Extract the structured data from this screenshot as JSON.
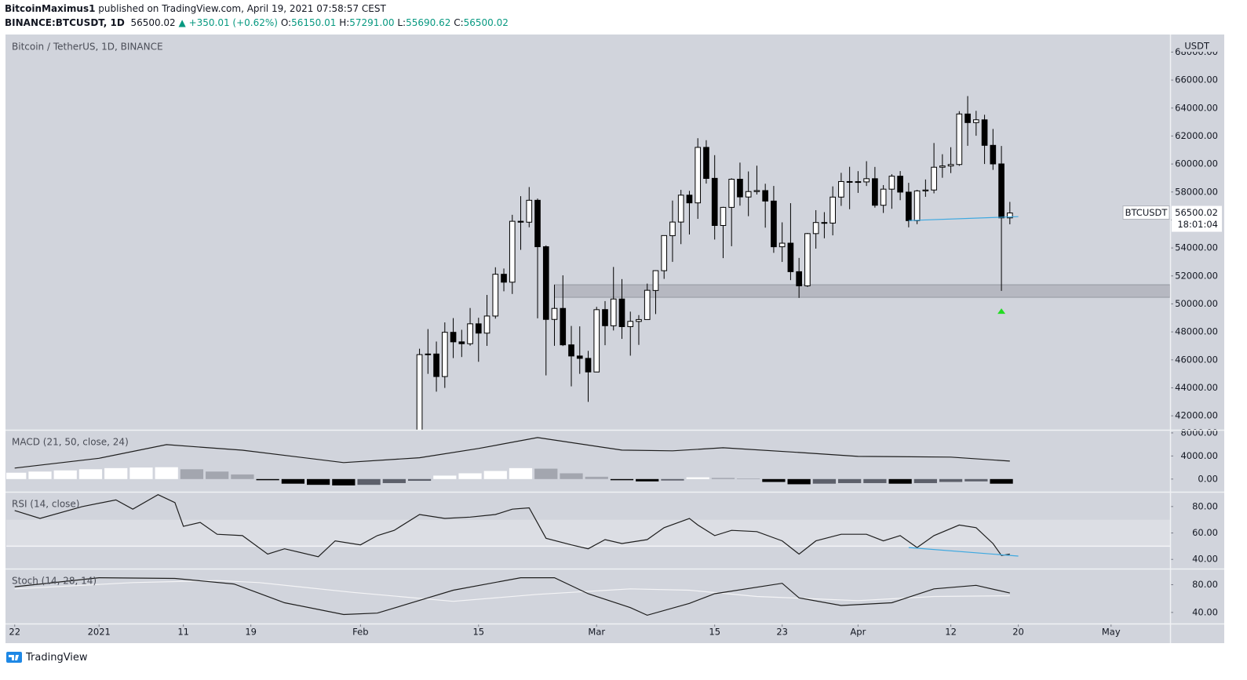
{
  "header": {
    "author": "BitcoinMaximus1",
    "published": "published on TradingView.com, April 19, 2021 07:58:57 CEST",
    "symbol": "BINANCE:BTCUSDT, 1D",
    "price": "56500.02",
    "change": "▲ +350.01 (+0.62%)",
    "ohlc": [
      {
        "label": "O:",
        "value": "56150.01"
      },
      {
        "label": "H:",
        "value": "57291.00"
      },
      {
        "label": "L:",
        "value": "55690.62"
      },
      {
        "label": "C:",
        "value": "56500.02"
      }
    ]
  },
  "footer": "TradingView",
  "chart_data": [
    {
      "type": "candlestick",
      "title": "Bitcoin / TetherUS, 1D, BINANCE",
      "y_label": "USDT",
      "last_label": "BTCUSDT",
      "countdown": "18:01:04",
      "up_color": "#ffffff",
      "down_color": "#000000",
      "xlim": [
        "2020-12-21",
        "2021-05-08"
      ],
      "ylim": [
        41000,
        69200
      ],
      "yticks": [
        {
          "value": 42000,
          "label": "42000.00"
        },
        {
          "value": 44000,
          "label": "44000.00"
        },
        {
          "value": 46000,
          "label": "46000.00"
        },
        {
          "value": 48000,
          "label": "48000.00"
        },
        {
          "value": 50000,
          "label": "50000.00"
        },
        {
          "value": 52000,
          "label": "52000.00"
        },
        {
          "value": 54000,
          "label": "54000.00"
        },
        {
          "value": 56000,
          "label": "56000.00"
        },
        {
          "value": 58000,
          "label": "58000.00"
        },
        {
          "value": 60000,
          "label": "60000.00"
        },
        {
          "value": 62000,
          "label": "62000.00"
        },
        {
          "value": 64000,
          "label": "64000.00"
        },
        {
          "value": 66000,
          "label": "66000.00"
        },
        {
          "value": 68000,
          "label": "68000.00"
        }
      ],
      "grid": false,
      "x": [
        "2021-02-08",
        "2021-02-09",
        "2021-02-10",
        "2021-02-11",
        "2021-02-12",
        "2021-02-13",
        "2021-02-14",
        "2021-02-15",
        "2021-02-16",
        "2021-02-17",
        "2021-02-18",
        "2021-02-19",
        "2021-02-20",
        "2021-02-21",
        "2021-02-22",
        "2021-02-23",
        "2021-02-24",
        "2021-02-25",
        "2021-02-26",
        "2021-02-27",
        "2021-02-28",
        "2021-03-01",
        "2021-03-02",
        "2021-03-03",
        "2021-03-04",
        "2021-03-05",
        "2021-03-06",
        "2021-03-07",
        "2021-03-08",
        "2021-03-09",
        "2021-03-10",
        "2021-03-11",
        "2021-03-12",
        "2021-03-13",
        "2021-03-14",
        "2021-03-15",
        "2021-03-16",
        "2021-03-17",
        "2021-03-18",
        "2021-03-19",
        "2021-03-20",
        "2021-03-21",
        "2021-03-22",
        "2021-03-23",
        "2021-03-24",
        "2021-03-25",
        "2021-03-26",
        "2021-03-27",
        "2021-03-28",
        "2021-03-29",
        "2021-03-30",
        "2021-03-31",
        "2021-04-01",
        "2021-04-02",
        "2021-04-03",
        "2021-04-04",
        "2021-04-05",
        "2021-04-06",
        "2021-04-07",
        "2021-04-08",
        "2021-04-09",
        "2021-04-10",
        "2021-04-11",
        "2021-04-12",
        "2021-04-13",
        "2021-04-14",
        "2021-04-15",
        "2021-04-16",
        "2021-04-17",
        "2021-04-18",
        "2021-04-19"
      ],
      "open": [
        38795,
        46374,
        46420,
        44807,
        47969,
        47287,
        47153,
        48577,
        47911,
        49133,
        52119,
        51552,
        55906,
        55841,
        57408,
        54087,
        48891,
        49677,
        47073,
        46276,
        46106,
        45134,
        49595,
        48436,
        50349,
        48374,
        48746,
        48882,
        50959,
        52375,
        54874,
        55851,
        57773,
        57221,
        61188,
        58976,
        55605,
        56900,
        58912,
        57641,
        58030,
        58100,
        57351,
        54083,
        54342,
        52303,
        51293,
        55025,
        55817,
        55777,
        57635,
        58746,
        58739,
        58720,
        58950,
        57051,
        58202,
        59129,
        57990,
        55953,
        58077,
        58142,
        59769,
        59860,
        59964,
        63575,
        62959,
        63159,
        61334,
        60006,
        56150
      ],
      "high": [
        46794,
        48200,
        47310,
        48678,
        48985,
        48150,
        49707,
        49010,
        50641,
        52618,
        52530,
        56368,
        57700,
        58352,
        57534,
        54183,
        51374,
        52041,
        48424,
        48395,
        46638,
        49790,
        50200,
        52640,
        51773,
        49448,
        49200,
        51450,
        52402,
        54895,
        57387,
        58150,
        58081,
        61844,
        61700,
        60633,
        56938,
        58978,
        60100,
        59468,
        59880,
        58589,
        58430,
        55830,
        57200,
        53287,
        55073,
        56700,
        56559,
        58400,
        59368,
        59800,
        59490,
        60200,
        59791,
        58492,
        59272,
        59495,
        58655,
        58153,
        58894,
        61500,
        60699,
        61199,
        63777,
        64854,
        63800,
        63520,
        62506,
        61287,
        57291
      ],
      "low": [
        37988,
        45000,
        43727,
        43994,
        46125,
        46202,
        47014,
        45862,
        47000,
        48947,
        50901,
        50710,
        53863,
        55477,
        48967,
        44892,
        47004,
        46988,
        44106,
        45000,
        43000,
        45115,
        47047,
        48100,
        47500,
        46300,
        47070,
        48882,
        49274,
        51789,
        53005,
        54272,
        54962,
        56078,
        58600,
        54600,
        53271,
        54124,
        57023,
        56270,
        57820,
        55450,
        53650,
        53000,
        51700,
        50427,
        51214,
        53950,
        54691,
        54900,
        57006,
        56769,
        57935,
        58428,
        56880,
        56500,
        56800,
        57413,
        55473,
        55700,
        57654,
        57903,
        59016,
        59350,
        59867,
        61301,
        62020,
        60000,
        59580,
        50931,
        55690
      ],
      "close": [
        46374,
        46420,
        44807,
        47969,
        47287,
        47153,
        48577,
        47911,
        49133,
        52119,
        51552,
        55906,
        55841,
        57408,
        54087,
        48891,
        49677,
        47073,
        46276,
        46106,
        45136,
        49587,
        48440,
        50349,
        48374,
        48751,
        48882,
        50971,
        52375,
        54884,
        55851,
        57773,
        57221,
        61188,
        58968,
        55605,
        56900,
        58912,
        57648,
        58030,
        58102,
        57351,
        54083,
        54340,
        52303,
        51293,
        55025,
        55817,
        55777,
        57635,
        58746,
        58740,
        58720,
        58950,
        57051,
        58202,
        59129,
        57991,
        55953,
        58077,
        58142,
        59769,
        59860,
        59964,
        63576,
        62959,
        63159,
        61334,
        60006,
        56150,
        56500.02
      ],
      "zone": {
        "from": "2021-02-24",
        "low": 50470,
        "high": 51370,
        "color": "rgba(110,113,124,0.28)"
      },
      "trendline": {
        "x": [
          "2021-04-07",
          "2021-04-20"
        ],
        "values": [
          55960,
          56240
        ],
        "color": "#3fa9e0"
      },
      "marker": {
        "x": "2021-04-18",
        "value": 49460,
        "color": "#22dd22"
      }
    },
    {
      "type": "indicator",
      "title": "MACD (21, 50, close, 24)",
      "xlim": [
        "2020-12-21",
        "2021-05-08"
      ],
      "ylim": [
        -2200,
        8400
      ],
      "yticks": [
        {
          "value": 0,
          "label": "0.00"
        },
        {
          "value": 4000,
          "label": "4000.00"
        },
        {
          "value": 8000,
          "label": "8000.00"
        }
      ],
      "histogram": {
        "x": [
          "2020-12-22",
          "2020-12-25",
          "2020-12-28",
          "2020-12-31",
          "2021-01-03",
          "2021-01-06",
          "2021-01-09",
          "2021-01-12",
          "2021-01-15",
          "2021-01-18",
          "2021-01-21",
          "2021-01-24",
          "2021-01-27",
          "2021-01-30",
          "2021-02-02",
          "2021-02-05",
          "2021-02-08",
          "2021-02-11",
          "2021-02-14",
          "2021-02-17",
          "2021-02-20",
          "2021-02-23",
          "2021-02-26",
          "2021-03-01",
          "2021-03-04",
          "2021-03-07",
          "2021-03-10",
          "2021-03-13",
          "2021-03-16",
          "2021-03-19",
          "2021-03-22",
          "2021-03-25",
          "2021-03-28",
          "2021-03-31",
          "2021-04-03",
          "2021-04-06",
          "2021-04-09",
          "2021-04-12",
          "2021-04-15",
          "2021-04-18"
        ],
        "values": [
          1100,
          1300,
          1500,
          1700,
          1900,
          2000,
          2050,
          1700,
          1300,
          800,
          -200,
          -800,
          -1000,
          -1100,
          -1000,
          -700,
          -300,
          600,
          1000,
          1400,
          1900,
          1800,
          1000,
          400,
          -200,
          -400,
          -250,
          300,
          200,
          100,
          -500,
          -900,
          -800,
          -700,
          -700,
          -800,
          -700,
          -500,
          -400,
          -800
        ],
        "colors": [
          "#ffffff",
          "#ffffff",
          "#ffffff",
          "#ffffff",
          "#ffffff",
          "#ffffff",
          "#ffffff",
          "#a3a6af",
          "#a3a6af",
          "#a3a6af",
          "#000000",
          "#000000",
          "#000000",
          "#000000",
          "#5d606b",
          "#5d606b",
          "#5d606b",
          "#ffffff",
          "#ffffff",
          "#ffffff",
          "#ffffff",
          "#a3a6af",
          "#a3a6af",
          "#a3a6af",
          "#000000",
          "#000000",
          "#5d606b",
          "#ffffff",
          "#a3a6af",
          "#a3a6af",
          "#000000",
          "#000000",
          "#5d606b",
          "#5d606b",
          "#5d606b",
          "#000000",
          "#5d606b",
          "#5d606b",
          "#5d606b",
          "#000000"
        ]
      },
      "lines": [
        {
          "color": "#1e1e1e",
          "x": [
            "2020-12-22",
            "2021-01-01",
            "2021-01-09",
            "2021-01-18",
            "2021-01-30",
            "2021-02-08",
            "2021-02-15",
            "2021-02-22",
            "2021-03-04",
            "2021-03-10",
            "2021-03-16",
            "2021-03-25",
            "2021-04-01",
            "2021-04-12",
            "2021-04-19"
          ],
          "values": [
            1900,
            3600,
            5970,
            5000,
            2850,
            3700,
            5300,
            7190,
            5020,
            4900,
            5420,
            4610,
            3930,
            3800,
            3120
          ]
        }
      ]
    },
    {
      "type": "indicator",
      "title": "RSI (14, close)",
      "xlim": [
        "2020-12-21",
        "2021-05-08"
      ],
      "ylim": [
        33,
        90.6
      ],
      "yticks": [
        {
          "value": 40,
          "label": "40.00"
        },
        {
          "value": 60,
          "label": "60.00"
        },
        {
          "value": 80,
          "label": "80.00"
        }
      ],
      "band": [
        50,
        70
      ],
      "lines": [
        {
          "color": "#1e1e1e",
          "x": [
            "2020-12-22",
            "2020-12-25",
            "2020-12-30",
            "2021-01-03",
            "2021-01-05",
            "2021-01-08",
            "2021-01-10",
            "2021-01-11",
            "2021-01-13",
            "2021-01-15",
            "2021-01-18",
            "2021-01-21",
            "2021-01-23",
            "2021-01-27",
            "2021-01-29",
            "2021-02-01",
            "2021-02-03",
            "2021-02-05",
            "2021-02-08",
            "2021-02-11",
            "2021-02-14",
            "2021-02-17",
            "2021-02-19",
            "2021-02-21",
            "2021-02-23",
            "2021-02-26",
            "2021-02-28",
            "2021-03-02",
            "2021-03-04",
            "2021-03-07",
            "2021-03-09",
            "2021-03-12",
            "2021-03-13",
            "2021-03-15",
            "2021-03-17",
            "2021-03-20",
            "2021-03-23",
            "2021-03-25",
            "2021-03-27",
            "2021-03-30",
            "2021-04-02",
            "2021-04-04",
            "2021-04-06",
            "2021-04-08",
            "2021-04-10",
            "2021-04-13",
            "2021-04-15",
            "2021-04-17",
            "2021-04-18",
            "2021-04-19"
          ],
          "values": [
            77,
            71,
            80,
            85,
            78,
            89,
            83,
            65,
            68,
            59,
            58,
            44,
            48,
            42,
            54,
            51,
            58,
            62,
            74,
            71,
            72,
            74,
            78,
            79,
            56,
            51,
            48,
            55,
            52,
            55,
            64,
            71,
            66,
            58,
            62,
            61,
            54,
            44,
            54,
            59,
            59,
            54,
            58,
            49,
            58,
            66,
            64,
            52,
            43,
            44
          ]
        }
      ],
      "trendline": {
        "x": [
          "2021-04-07",
          "2021-04-20"
        ],
        "values": [
          49,
          42.5
        ],
        "color": "#3fa9e0"
      }
    },
    {
      "type": "indicator",
      "title": "Stoch (14, 28, 14)",
      "xlim": [
        "2020-12-21",
        "2021-05-08"
      ],
      "ylim": [
        24,
        102
      ],
      "yticks": [
        {
          "value": 40,
          "label": "40.00"
        },
        {
          "value": 80,
          "label": "80.00"
        }
      ],
      "xticks": [
        {
          "value": "2020-12-22",
          "label": "22"
        },
        {
          "value": "2021-01-01",
          "label": "2021"
        },
        {
          "value": "2021-01-11",
          "label": "11"
        },
        {
          "value": "2021-01-19",
          "label": "19"
        },
        {
          "value": "2021-02-01",
          "label": "Feb"
        },
        {
          "value": "2021-02-15",
          "label": "15"
        },
        {
          "value": "2021-03-01",
          "label": "Mar"
        },
        {
          "value": "2021-03-15",
          "label": "15"
        },
        {
          "value": "2021-03-23",
          "label": "23"
        },
        {
          "value": "2021-04-01",
          "label": "Apr"
        },
        {
          "value": "2021-04-12",
          "label": "12"
        },
        {
          "value": "2021-04-20",
          "label": "20"
        },
        {
          "value": "2021-05-01",
          "label": "May"
        }
      ],
      "lines": [
        {
          "color": "#f4f4f6",
          "x": [
            "2020-12-22",
            "2021-01-05",
            "2021-01-15",
            "2021-01-20",
            "2021-01-31",
            "2021-02-12",
            "2021-02-22",
            "2021-03-05",
            "2021-03-12",
            "2021-03-20",
            "2021-04-01",
            "2021-04-10",
            "2021-04-19"
          ],
          "values": [
            74,
            83,
            86,
            83,
            69,
            56,
            66,
            74,
            72,
            63,
            57,
            63,
            64
          ]
        },
        {
          "color": "#1e1e1e",
          "x": [
            "2020-12-22",
            "2021-01-01",
            "2021-01-10",
            "2021-01-17",
            "2021-01-23",
            "2021-01-30",
            "2021-02-03",
            "2021-02-12",
            "2021-02-20",
            "2021-02-24",
            "2021-02-28",
            "2021-03-05",
            "2021-03-07",
            "2021-03-12",
            "2021-03-15",
            "2021-03-23",
            "2021-03-25",
            "2021-03-30",
            "2021-04-05",
            "2021-04-10",
            "2021-04-15",
            "2021-04-19"
          ],
          "values": [
            77,
            90,
            89,
            81,
            54,
            37,
            39,
            72,
            90,
            90,
            67,
            47,
            36,
            53,
            67,
            82,
            61,
            50,
            54,
            74,
            79,
            68
          ]
        }
      ]
    }
  ]
}
